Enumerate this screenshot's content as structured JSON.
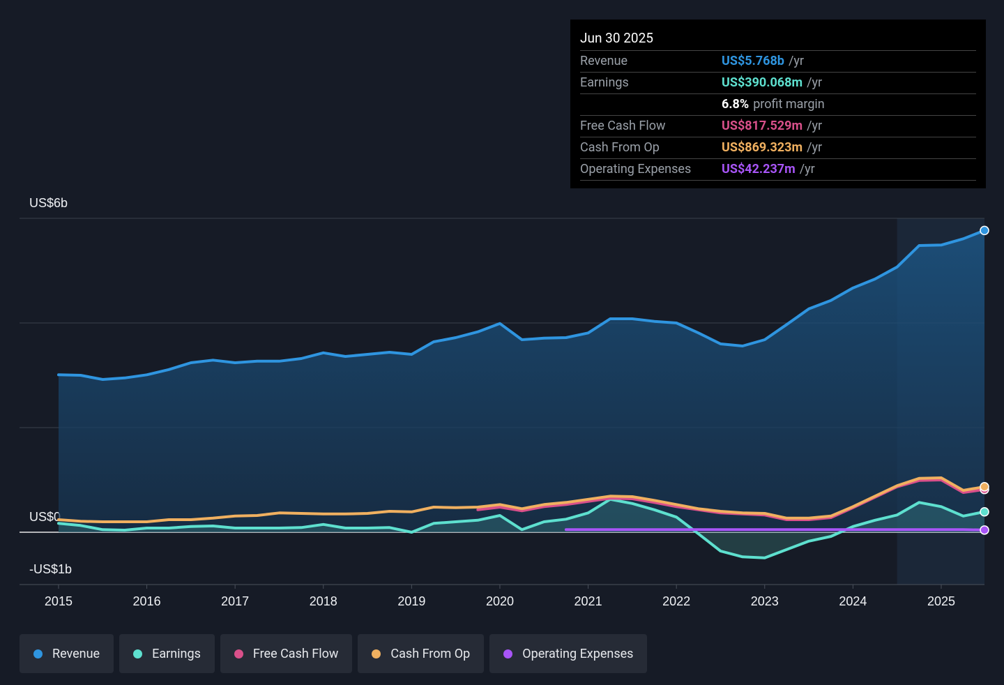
{
  "chart_data": {
    "type": "line",
    "x": [
      2015,
      2015.25,
      2015.5,
      2015.75,
      2016,
      2016.25,
      2016.5,
      2016.75,
      2017,
      2017.25,
      2017.5,
      2017.75,
      2018,
      2018.25,
      2018.5,
      2018.75,
      2019,
      2019.25,
      2019.5,
      2019.75,
      2020,
      2020.25,
      2020.5,
      2020.75,
      2021,
      2021.25,
      2021.5,
      2021.75,
      2022,
      2022.25,
      2022.5,
      2022.75,
      2023,
      2023.25,
      2023.5,
      2023.75,
      2024,
      2024.25,
      2024.5,
      2024.75,
      2025,
      2025.25,
      2025.49
    ],
    "series": [
      {
        "name": "Revenue",
        "color": "#2f95e0",
        "area": true,
        "values": [
          3.01,
          3.0,
          2.92,
          2.95,
          3.01,
          3.11,
          3.24,
          3.29,
          3.24,
          3.27,
          3.27,
          3.32,
          3.43,
          3.36,
          3.4,
          3.44,
          3.4,
          3.64,
          3.72,
          3.83,
          3.99,
          3.68,
          3.71,
          3.72,
          3.81,
          4.08,
          4.08,
          4.03,
          4.0,
          3.81,
          3.6,
          3.56,
          3.68,
          3.97,
          4.27,
          4.43,
          4.67,
          4.84,
          5.07,
          5.48,
          5.49,
          5.61,
          5.768
        ]
      },
      {
        "name": "Earnings",
        "color": "#5ee0cf",
        "area": true,
        "values": [
          0.17,
          0.13,
          0.05,
          0.04,
          0.08,
          0.08,
          0.11,
          0.12,
          0.08,
          0.08,
          0.08,
          0.09,
          0.15,
          0.08,
          0.08,
          0.09,
          0.0,
          0.17,
          0.2,
          0.23,
          0.32,
          0.05,
          0.2,
          0.25,
          0.37,
          0.63,
          0.55,
          0.43,
          0.29,
          -0.03,
          -0.36,
          -0.47,
          -0.49,
          -0.33,
          -0.17,
          -0.08,
          0.11,
          0.23,
          0.33,
          0.57,
          0.49,
          0.31,
          0.390068
        ]
      },
      {
        "name": "Free Cash Flow",
        "color": "#d9508a",
        "area": false,
        "values": [
          null,
          null,
          null,
          null,
          null,
          null,
          null,
          null,
          null,
          null,
          null,
          null,
          null,
          null,
          null,
          null,
          null,
          null,
          null,
          0.43,
          0.48,
          0.41,
          0.49,
          0.53,
          0.59,
          0.65,
          0.64,
          0.57,
          0.49,
          0.43,
          0.37,
          0.35,
          0.33,
          0.24,
          0.24,
          0.28,
          0.47,
          0.67,
          0.87,
          0.99,
          1.0,
          0.76,
          0.817529
        ]
      },
      {
        "name": "Cash From Op",
        "color": "#f0b060",
        "area": false,
        "values": [
          0.24,
          0.21,
          0.2,
          0.2,
          0.2,
          0.24,
          0.24,
          0.27,
          0.31,
          0.32,
          0.37,
          0.36,
          0.35,
          0.35,
          0.36,
          0.4,
          0.39,
          0.48,
          0.47,
          0.48,
          0.53,
          0.45,
          0.53,
          0.57,
          0.63,
          0.69,
          0.68,
          0.61,
          0.53,
          0.45,
          0.4,
          0.37,
          0.36,
          0.27,
          0.27,
          0.31,
          0.49,
          0.69,
          0.89,
          1.03,
          1.04,
          0.8,
          0.869323
        ]
      },
      {
        "name": "Operating Expenses",
        "color": "#a855f7",
        "area": false,
        "values": [
          null,
          null,
          null,
          null,
          null,
          null,
          null,
          null,
          null,
          null,
          null,
          null,
          null,
          null,
          null,
          null,
          null,
          null,
          null,
          null,
          null,
          null,
          null,
          0.05,
          0.05,
          0.05,
          0.05,
          0.05,
          0.05,
          0.05,
          0.05,
          0.05,
          0.05,
          0.05,
          0.05,
          0.05,
          0.05,
          0.05,
          0.05,
          0.05,
          0.05,
          0.05,
          0.042237
        ]
      }
    ],
    "xlim": [
      2014.558,
      2025.49
    ],
    "xticks": [
      2015,
      2016,
      2017,
      2018,
      2019,
      2020,
      2021,
      2022,
      2023,
      2024,
      2025
    ],
    "ylim": [
      -1,
      6
    ],
    "yticks": [
      {
        "value": -1,
        "label": "-US$1b"
      },
      {
        "value": 0,
        "label": "US$0"
      },
      {
        "value": 6,
        "label": "US$6b"
      }
    ],
    "ygrid": [
      2,
      4,
      6
    ],
    "highlight_range": [
      2024.5,
      2025.49
    ],
    "tooltip": {
      "date": "Jun 30 2025",
      "rows": [
        {
          "label": "Revenue",
          "value": "US$5.768b",
          "unit": "/yr"
        },
        {
          "label": "Earnings",
          "value": "US$390.068m",
          "unit": "/yr",
          "note_value": "6.8%",
          "note": "profit margin"
        },
        {
          "label": "Free Cash Flow",
          "value": "US$817.529m",
          "unit": "/yr"
        },
        {
          "label": "Cash From Op",
          "value": "US$869.323m",
          "unit": "/yr"
        },
        {
          "label": "Operating Expenses",
          "value": "US$42.237m",
          "unit": "/yr"
        }
      ]
    }
  }
}
